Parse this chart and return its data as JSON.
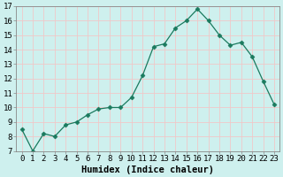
{
  "x": [
    0,
    1,
    2,
    3,
    4,
    5,
    6,
    7,
    8,
    9,
    10,
    11,
    12,
    13,
    14,
    15,
    16,
    17,
    18,
    19,
    20,
    21,
    22,
    23
  ],
  "y": [
    8.5,
    7.0,
    8.2,
    8.0,
    8.8,
    9.0,
    9.5,
    9.9,
    10.0,
    10.0,
    10.7,
    12.2,
    14.2,
    14.4,
    15.5,
    16.0,
    16.8,
    16.0,
    15.0,
    14.3,
    14.5,
    13.5,
    11.8,
    10.2
  ],
  "xlabel": "Humidex (Indice chaleur)",
  "ylim": [
    7,
    17
  ],
  "xlim": [
    -0.5,
    23.5
  ],
  "yticks": [
    7,
    8,
    9,
    10,
    11,
    12,
    13,
    14,
    15,
    16,
    17
  ],
  "xticks": [
    0,
    1,
    2,
    3,
    4,
    5,
    6,
    7,
    8,
    9,
    10,
    11,
    12,
    13,
    14,
    15,
    16,
    17,
    18,
    19,
    20,
    21,
    22,
    23
  ],
  "line_color": "#1a7a5e",
  "marker": "D",
  "marker_size": 2.5,
  "bg_color": "#cef0ee",
  "grid_color": "#f0c8c8",
  "xlabel_fontsize": 7.5,
  "tick_fontsize": 6.5
}
